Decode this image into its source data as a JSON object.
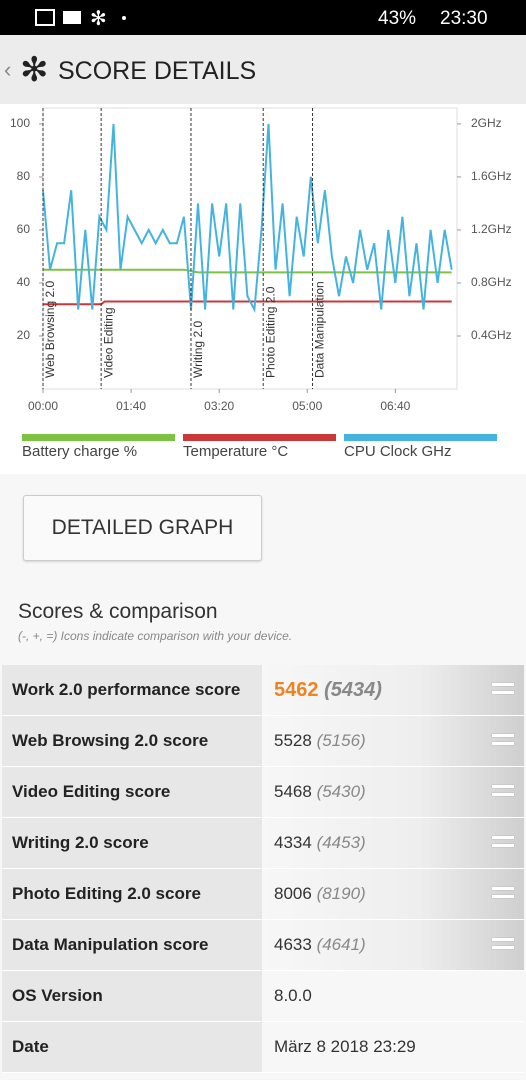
{
  "status_bar": {
    "battery": "43%",
    "time": "23:30"
  },
  "header": {
    "title": "SCORE DETAILS"
  },
  "chart_data": {
    "type": "line",
    "xlim": [
      0,
      470
    ],
    "xticks": [
      {
        "value": 0,
        "label": "00:00"
      },
      {
        "value": 100,
        "label": "01:40"
      },
      {
        "value": 200,
        "label": "03:20"
      },
      {
        "value": 300,
        "label": "05:00"
      },
      {
        "value": 400,
        "label": "06:40"
      }
    ],
    "ylim": [
      0,
      106
    ],
    "yticks": [
      20,
      40,
      60,
      80,
      100
    ],
    "y2lim": [
      0,
      2.12
    ],
    "y2ticks": [
      {
        "value": 0.4,
        "label": "0.4GHz"
      },
      {
        "value": 0.8,
        "label": "0.8GHz"
      },
      {
        "value": 1.2,
        "label": "1.2GHz"
      },
      {
        "value": 1.6,
        "label": "1.6GHz"
      },
      {
        "value": 2,
        "label": "2GHz"
      }
    ],
    "annotations": [
      {
        "x": 0,
        "text": "Web Browsing 2.0"
      },
      {
        "x": 66,
        "text": "Video Editing"
      },
      {
        "x": 168,
        "text": "Writing 2.0"
      },
      {
        "x": 250,
        "text": "Photo Editing 2.0"
      },
      {
        "x": 306,
        "text": "Data Manipulation"
      }
    ],
    "series": [
      {
        "name": "Battery charge %",
        "color": "#7dc242",
        "x": [
          0,
          160,
          176,
          464
        ],
        "values": [
          45,
          45,
          44,
          44
        ]
      },
      {
        "name": "Temperature °C",
        "color": "#c9393a",
        "x": [
          0,
          66,
          70,
          464
        ],
        "values": [
          32,
          32,
          33,
          33
        ]
      },
      {
        "name": "CPU Clock GHz",
        "color": "#45b3e0",
        "axis": "y2",
        "x": [
          0,
          8,
          16,
          24,
          32,
          40,
          48,
          56,
          64,
          72,
          80,
          88,
          96,
          104,
          112,
          120,
          128,
          136,
          144,
          152,
          160,
          168,
          176,
          184,
          192,
          200,
          208,
          216,
          224,
          232,
          240,
          248,
          256,
          264,
          272,
          280,
          288,
          296,
          304,
          312,
          320,
          328,
          336,
          344,
          352,
          360,
          368,
          376,
          384,
          392,
          400,
          408,
          416,
          424,
          432,
          440,
          448,
          456,
          464
        ],
        "values": [
          1.5,
          0.9,
          1.1,
          1.1,
          1.5,
          0.6,
          1.2,
          0.6,
          1.3,
          1.2,
          2.0,
          0.9,
          1.3,
          1.2,
          1.1,
          1.2,
          1.1,
          1.2,
          1.1,
          1.1,
          1.3,
          0.6,
          1.4,
          0.6,
          1.4,
          1.0,
          1.4,
          0.6,
          1.4,
          0.7,
          0.6,
          1.2,
          2.0,
          0.9,
          1.4,
          0.7,
          1.3,
          1.0,
          1.6,
          1.1,
          1.5,
          1.0,
          0.7,
          1.0,
          0.8,
          1.2,
          0.9,
          1.1,
          0.6,
          1.2,
          0.8,
          1.3,
          0.7,
          1.1,
          0.6,
          1.2,
          0.8,
          1.2,
          0.9
        ]
      }
    ]
  },
  "button": {
    "label": "DETAILED GRAPH"
  },
  "scores": {
    "title": "Scores & comparison",
    "subtitle": "(-, +, =) Icons indicate comparison with your device.",
    "rows": [
      {
        "name": "Work 2.0 performance score",
        "score": "5462",
        "compare": "(5434)"
      },
      {
        "name": "Web Browsing 2.0 score",
        "score": "5528",
        "compare": "(5156)"
      },
      {
        "name": "Video Editing score",
        "score": "5468",
        "compare": "(5430)"
      },
      {
        "name": "Writing 2.0 score",
        "score": "4334",
        "compare": "(4453)"
      },
      {
        "name": "Photo Editing 2.0 score",
        "score": "8006",
        "compare": "(8190)"
      },
      {
        "name": "Data Manipulation score",
        "score": "4633",
        "compare": "(4641)"
      }
    ],
    "info": [
      {
        "name": "OS Version",
        "value": "8.0.0"
      },
      {
        "name": "Date",
        "value": "März 8 2018 23:29"
      }
    ]
  }
}
